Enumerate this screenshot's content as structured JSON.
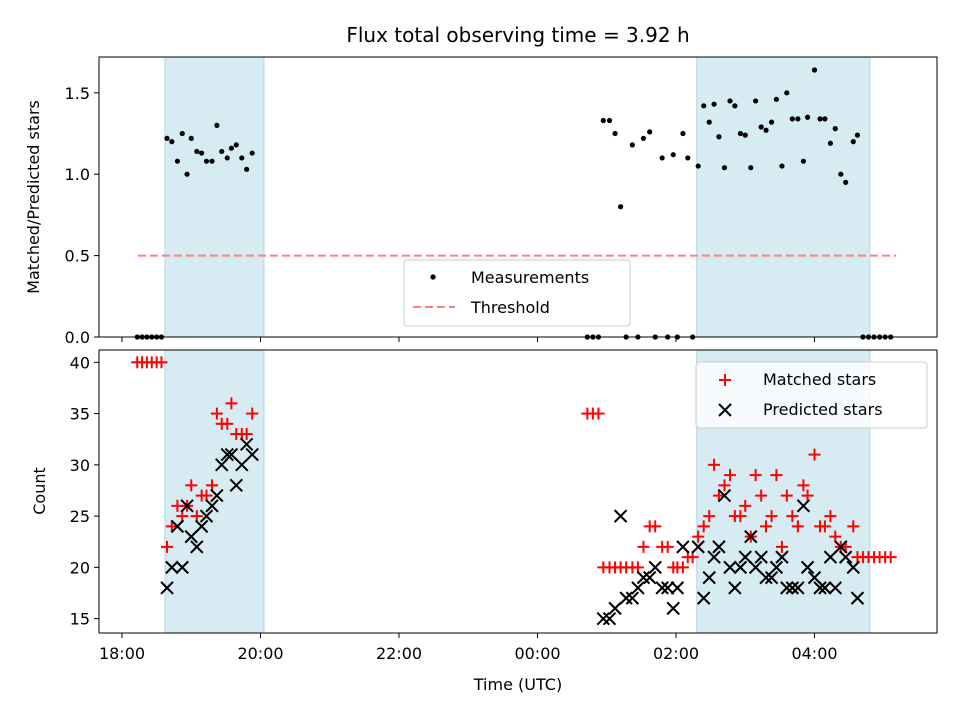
{
  "chart_data": [
    {
      "type": "scatter",
      "title": "Flux total observing time = 3.92 h",
      "ylabel": "Matched/Predicted stars",
      "xlabel": "",
      "ylim": [
        0,
        1.72
      ],
      "yticks": [
        0.0,
        0.5,
        1.0,
        1.5
      ],
      "ytick_labels": [
        "0.0",
        "0.5",
        "1.0",
        "1.5"
      ],
      "xticks_hours": [
        18,
        20,
        22,
        24,
        26,
        28
      ],
      "shaded_ranges_hours": [
        [
          18.62,
          20.05
        ],
        [
          26.3,
          28.8
        ]
      ],
      "legend": {
        "placement": "bottom-center",
        "entries": [
          "Measurements",
          "Threshold"
        ]
      },
      "threshold": {
        "value": 0.5,
        "x_range_hours": [
          18.23,
          29.18
        ],
        "color": "#ff7f7f"
      },
      "series": [
        {
          "name": "Measurements",
          "marker": "dot",
          "color": "#000000",
          "points": [
            [
              18.22,
              0
            ],
            [
              18.29,
              0
            ],
            [
              18.36,
              0
            ],
            [
              18.43,
              0
            ],
            [
              18.5,
              0
            ],
            [
              18.57,
              0
            ],
            [
              18.65,
              1.22
            ],
            [
              18.72,
              1.2
            ],
            [
              18.8,
              1.08
            ],
            [
              18.87,
              1.25
            ],
            [
              18.94,
              1.0
            ],
            [
              19.0,
              1.22
            ],
            [
              19.08,
              1.14
            ],
            [
              19.15,
              1.13
            ],
            [
              19.22,
              1.08
            ],
            [
              19.3,
              1.08
            ],
            [
              19.37,
              1.3
            ],
            [
              19.44,
              1.14
            ],
            [
              19.52,
              1.1
            ],
            [
              19.58,
              1.16
            ],
            [
              19.65,
              1.18
            ],
            [
              19.73,
              1.1
            ],
            [
              19.8,
              1.03
            ],
            [
              19.88,
              1.13
            ],
            [
              24.72,
              0
            ],
            [
              24.8,
              0
            ],
            [
              24.88,
              0
            ],
            [
              24.95,
              1.33
            ],
            [
              25.04,
              1.33
            ],
            [
              25.12,
              1.25
            ],
            [
              25.2,
              0.8
            ],
            [
              25.28,
              0
            ],
            [
              25.37,
              1.18
            ],
            [
              25.45,
              0
            ],
            [
              25.53,
              1.22
            ],
            [
              25.62,
              1.26
            ],
            [
              25.7,
              0
            ],
            [
              25.8,
              1.1
            ],
            [
              25.88,
              0
            ],
            [
              25.96,
              1.12
            ],
            [
              26.02,
              0
            ],
            [
              26.1,
              1.25
            ],
            [
              26.17,
              1.1
            ],
            [
              26.24,
              0
            ],
            [
              26.32,
              1.05
            ],
            [
              26.4,
              1.42
            ],
            [
              26.48,
              1.32
            ],
            [
              26.55,
              1.43
            ],
            [
              26.62,
              1.23
            ],
            [
              26.7,
              1.04
            ],
            [
              26.78,
              1.45
            ],
            [
              26.85,
              1.42
            ],
            [
              26.93,
              1.25
            ],
            [
              27.0,
              1.24
            ],
            [
              27.08,
              1.04
            ],
            [
              27.15,
              1.45
            ],
            [
              27.23,
              1.29
            ],
            [
              27.3,
              1.27
            ],
            [
              27.38,
              1.32
            ],
            [
              27.45,
              1.46
            ],
            [
              27.53,
              1.05
            ],
            [
              27.6,
              1.5
            ],
            [
              27.68,
              1.34
            ],
            [
              27.76,
              1.34
            ],
            [
              27.84,
              1.08
            ],
            [
              27.9,
              1.35
            ],
            [
              28.0,
              1.64
            ],
            [
              28.08,
              1.34
            ],
            [
              28.15,
              1.34
            ],
            [
              28.23,
              1.19
            ],
            [
              28.3,
              1.28
            ],
            [
              28.38,
              1.0
            ],
            [
              28.45,
              0.95
            ],
            [
              28.56,
              1.2
            ],
            [
              28.62,
              1.24
            ],
            [
              28.7,
              0
            ],
            [
              28.78,
              0
            ],
            [
              28.86,
              0
            ],
            [
              28.94,
              0
            ],
            [
              29.02,
              0
            ],
            [
              29.1,
              0
            ]
          ]
        }
      ]
    },
    {
      "type": "scatter",
      "title": "",
      "xlabel": "Time (UTC)",
      "ylabel": "Count",
      "ylim": [
        13.6,
        41.2
      ],
      "yticks": [
        15,
        20,
        25,
        30,
        35,
        40
      ],
      "ytick_labels": [
        "15",
        "20",
        "25",
        "30",
        "35",
        "40"
      ],
      "xticks_hours": [
        18,
        20,
        22,
        24,
        26,
        28
      ],
      "xtick_labels": [
        "18:00",
        "20:00",
        "22:00",
        "00:00",
        "02:00",
        "04:00"
      ],
      "shaded_ranges_hours": [
        [
          18.62,
          20.05
        ],
        [
          26.3,
          28.8
        ]
      ],
      "legend": {
        "placement": "top-right",
        "entries": [
          "Matched stars",
          "Predicted stars"
        ]
      },
      "series": [
        {
          "name": "Matched stars",
          "marker": "plus",
          "color": "#ff0000",
          "points": [
            [
              18.22,
              40
            ],
            [
              18.29,
              40
            ],
            [
              18.36,
              40
            ],
            [
              18.43,
              40
            ],
            [
              18.5,
              40
            ],
            [
              18.57,
              40
            ],
            [
              18.65,
              22
            ],
            [
              18.72,
              24
            ],
            [
              18.8,
              26
            ],
            [
              18.87,
              25
            ],
            [
              18.94,
              26
            ],
            [
              19.0,
              28
            ],
            [
              19.08,
              25
            ],
            [
              19.15,
              27
            ],
            [
              19.22,
              27
            ],
            [
              19.3,
              28
            ],
            [
              19.37,
              35
            ],
            [
              19.44,
              34
            ],
            [
              19.52,
              34
            ],
            [
              19.58,
              36
            ],
            [
              19.65,
              33
            ],
            [
              19.73,
              33
            ],
            [
              19.8,
              33
            ],
            [
              19.88,
              35
            ],
            [
              24.72,
              35
            ],
            [
              24.8,
              35
            ],
            [
              24.88,
              35
            ],
            [
              24.95,
              20
            ],
            [
              25.04,
              20
            ],
            [
              25.12,
              20
            ],
            [
              25.2,
              20
            ],
            [
              25.28,
              20
            ],
            [
              25.37,
              20
            ],
            [
              25.45,
              20
            ],
            [
              25.53,
              22
            ],
            [
              25.62,
              24
            ],
            [
              25.7,
              24
            ],
            [
              25.8,
              22
            ],
            [
              25.88,
              22
            ],
            [
              25.96,
              20
            ],
            [
              26.02,
              20
            ],
            [
              26.1,
              20
            ],
            [
              26.17,
              21
            ],
            [
              26.24,
              21
            ],
            [
              26.32,
              23
            ],
            [
              26.4,
              24
            ],
            [
              26.48,
              25
            ],
            [
              26.55,
              30
            ],
            [
              26.62,
              27
            ],
            [
              26.7,
              28
            ],
            [
              26.78,
              29
            ],
            [
              26.85,
              25
            ],
            [
              26.93,
              25
            ],
            [
              27.0,
              26
            ],
            [
              27.08,
              23
            ],
            [
              27.15,
              29
            ],
            [
              27.23,
              27
            ],
            [
              27.3,
              24
            ],
            [
              27.38,
              25
            ],
            [
              27.45,
              29
            ],
            [
              27.53,
              22
            ],
            [
              27.6,
              27
            ],
            [
              27.68,
              25
            ],
            [
              27.76,
              24
            ],
            [
              27.84,
              28
            ],
            [
              27.9,
              27
            ],
            [
              28.0,
              31
            ],
            [
              28.08,
              24
            ],
            [
              28.15,
              24
            ],
            [
              28.23,
              25
            ],
            [
              28.3,
              23
            ],
            [
              28.38,
              22
            ],
            [
              28.45,
              22
            ],
            [
              28.56,
              24
            ],
            [
              28.62,
              21
            ],
            [
              28.7,
              21
            ],
            [
              28.78,
              21
            ],
            [
              28.86,
              21
            ],
            [
              28.94,
              21
            ],
            [
              29.02,
              21
            ],
            [
              29.1,
              21
            ]
          ]
        },
        {
          "name": "Predicted stars",
          "marker": "x",
          "color": "#000000",
          "points": [
            [
              18.65,
              18
            ],
            [
              18.72,
              20
            ],
            [
              18.8,
              24
            ],
            [
              18.87,
              20
            ],
            [
              18.94,
              26
            ],
            [
              19.0,
              23
            ],
            [
              19.08,
              22
            ],
            [
              19.15,
              24
            ],
            [
              19.22,
              25
            ],
            [
              19.3,
              26
            ],
            [
              19.37,
              27
            ],
            [
              19.44,
              30
            ],
            [
              19.52,
              31
            ],
            [
              19.58,
              31
            ],
            [
              19.65,
              28
            ],
            [
              19.73,
              30
            ],
            [
              19.8,
              32
            ],
            [
              19.88,
              31
            ],
            [
              24.95,
              15
            ],
            [
              25.04,
              15
            ],
            [
              25.12,
              16
            ],
            [
              25.2,
              25
            ],
            [
              25.28,
              17
            ],
            [
              25.37,
              17
            ],
            [
              25.45,
              18
            ],
            [
              25.53,
              19
            ],
            [
              25.62,
              19
            ],
            [
              25.7,
              20
            ],
            [
              25.8,
              18
            ],
            [
              25.88,
              18
            ],
            [
              25.96,
              16
            ],
            [
              26.02,
              18
            ],
            [
              26.1,
              22
            ],
            [
              26.32,
              22
            ],
            [
              26.4,
              17
            ],
            [
              26.48,
              19
            ],
            [
              26.55,
              21
            ],
            [
              26.62,
              22
            ],
            [
              26.7,
              27
            ],
            [
              26.78,
              20
            ],
            [
              26.85,
              18
            ],
            [
              26.93,
              20
            ],
            [
              27.0,
              21
            ],
            [
              27.08,
              23
            ],
            [
              27.15,
              20
            ],
            [
              27.23,
              21
            ],
            [
              27.3,
              19
            ],
            [
              27.38,
              19
            ],
            [
              27.45,
              20
            ],
            [
              27.53,
              21
            ],
            [
              27.6,
              18
            ],
            [
              27.68,
              18
            ],
            [
              27.76,
              18
            ],
            [
              27.84,
              26
            ],
            [
              27.9,
              20
            ],
            [
              28.0,
              19
            ],
            [
              28.08,
              18
            ],
            [
              28.15,
              18
            ],
            [
              28.23,
              21
            ],
            [
              28.3,
              18
            ],
            [
              28.38,
              22
            ],
            [
              28.45,
              21
            ],
            [
              28.56,
              20
            ],
            [
              28.62,
              17
            ]
          ]
        }
      ]
    }
  ]
}
